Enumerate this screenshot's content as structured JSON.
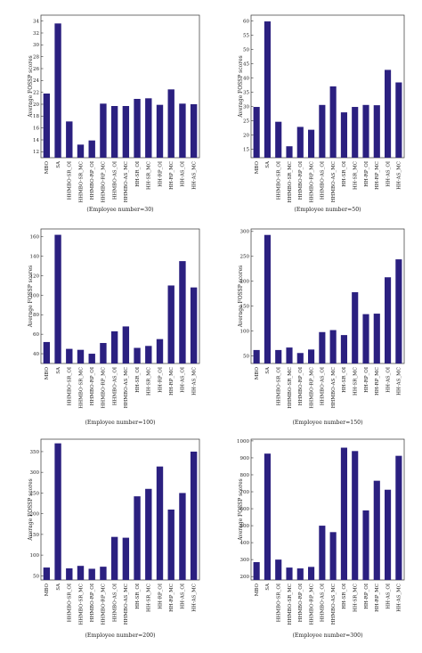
{
  "bar_color": "#2b2080",
  "chart_data": [
    {
      "type": "bar",
      "categories": [
        "MBO",
        "SA",
        "HHMBO-SR_OI",
        "HHMBO-SR_MC",
        "HHMBO-RP_OI",
        "HHMBO-RP_MC",
        "HHMBO-AS_OI",
        "HHMBO-AS_MC",
        "HH-SR_OI",
        "HH-SR_MC",
        "HH-RP_OI",
        "HH-RP_MC",
        "HH-AS_OI",
        "HH-AS_MC"
      ],
      "values": [
        21.8,
        33.6,
        17.1,
        13.2,
        13.9,
        20.1,
        19.7,
        19.7,
        20.9,
        21.0,
        19.9,
        22.5,
        20.1,
        20.0
      ],
      "ylabel": "Average FOSSP scores",
      "xlabel": "(Employee number=30)",
      "ylim": [
        11,
        35
      ],
      "yticks": [
        12,
        14,
        16,
        18,
        20,
        22,
        24,
        26,
        28,
        30,
        32,
        34
      ]
    },
    {
      "type": "bar",
      "categories": [
        "MBO",
        "SA",
        "HHMBO-SR_OI",
        "HHMBO-SR_MC",
        "HHMBO-RP_OI",
        "HHMBO-RP_MC",
        "HHMBO-AS_OI",
        "HHMBO-AS_MC",
        "HH-SR_OI",
        "HH-SR_MC",
        "HH-RP_OI",
        "HH-RP_MC",
        "HH-AS_OI",
        "HH-AS_MC"
      ],
      "values": [
        29.8,
        59.8,
        24.6,
        16.0,
        22.8,
        21.8,
        30.5,
        37.0,
        27.9,
        29.8,
        30.5,
        30.4,
        42.8,
        38.4
      ],
      "ylabel": "Average FOSSP scores",
      "xlabel": "(Employee number=50)",
      "ylim": [
        12,
        62
      ],
      "yticks": [
        15,
        20,
        25,
        30,
        35,
        40,
        45,
        50,
        55,
        60
      ]
    },
    {
      "type": "bar",
      "categories": [
        "MBO",
        "SA",
        "HHMBO-SR_OI",
        "HHMBO-SR_MC",
        "HHMBO-RP_OI",
        "HHMBO-RP_MC",
        "HHMBO-AS_OI",
        "HHMBO-AS_MC",
        "HH-SR_OI",
        "HH-SR_MC",
        "HH-RP_OI",
        "HH-RP_MC",
        "HH-AS_OI",
        "HH-AS_MC"
      ],
      "values": [
        52,
        162,
        45,
        44,
        40,
        51,
        63,
        68,
        46,
        48,
        55,
        110,
        135,
        108
      ],
      "ylabel": "Average FOSSP scores",
      "xlabel": "(Employee number=100)",
      "ylim": [
        30,
        168
      ],
      "yticks": [
        40,
        60,
        80,
        100,
        120,
        140,
        160
      ]
    },
    {
      "type": "bar",
      "categories": [
        "MBO",
        "SA",
        "HHMBO-SR_OI",
        "HHMBO-SR_MC",
        "HHMBO-RP_OI",
        "HHMBO-RP_MC",
        "HHMBO-AS_OI",
        "HHMBO-AS_MC",
        "HH-SR_OI",
        "HH-SR_MC",
        "HH-RP_OI",
        "HH-RP_MC",
        "HH-AS_OI",
        "HH-AS_MC"
      ],
      "values": [
        62,
        293,
        62,
        67,
        56,
        63,
        98,
        102,
        92,
        178,
        134,
        135,
        208,
        244
      ],
      "ylabel": "Average FOSSP scores",
      "xlabel": "(Employee number=150)",
      "ylim": [
        35,
        305
      ],
      "yticks": [
        50,
        100,
        150,
        200,
        250,
        300
      ]
    },
    {
      "type": "bar",
      "categories": [
        "MBO",
        "SA",
        "HHMBO-SR_OI",
        "HHMBO-SR_MC",
        "HHMBO-RP_OI",
        "HHMBO-RP_MC",
        "HHMBO-AS_OI",
        "HHMBO-AS_MC",
        "HH-SR_OI",
        "HH-SR_MC",
        "HH-RP_OI",
        "HH-RP_MC",
        "HH-AS_OI",
        "HH-AS_MC"
      ],
      "values": [
        70,
        370,
        68,
        74,
        67,
        72,
        144,
        142,
        242,
        260,
        314,
        210,
        250,
        350
      ],
      "ylabel": "Average FOSSP scores",
      "xlabel": "(Employee number=200)",
      "ylim": [
        40,
        380
      ],
      "yticks": [
        50,
        100,
        150,
        200,
        250,
        300,
        350
      ]
    },
    {
      "type": "bar",
      "categories": [
        "MBO",
        "SA",
        "HHMBO-SR_OI",
        "HHMBO-SR_MC",
        "HHMBO-RP_OI",
        "HHMBO-RP_MC",
        "HHMBO-AS_OI",
        "HHMBO-AS_MC",
        "HH-SR_OI",
        "HH-SR_MC",
        "HH-RP_OI",
        "HH-RP_MC",
        "HH-AS_OI",
        "HH-AS_MC"
      ],
      "values": [
        285,
        925,
        300,
        253,
        248,
        257,
        500,
        462,
        960,
        940,
        590,
        765,
        712,
        912
      ],
      "ylabel": "Average FOSSP scores",
      "xlabel": "(Employee number=300)",
      "ylim": [
        180,
        1010
      ],
      "yticks": [
        200,
        300,
        400,
        500,
        600,
        700,
        800,
        900,
        1000
      ]
    }
  ]
}
